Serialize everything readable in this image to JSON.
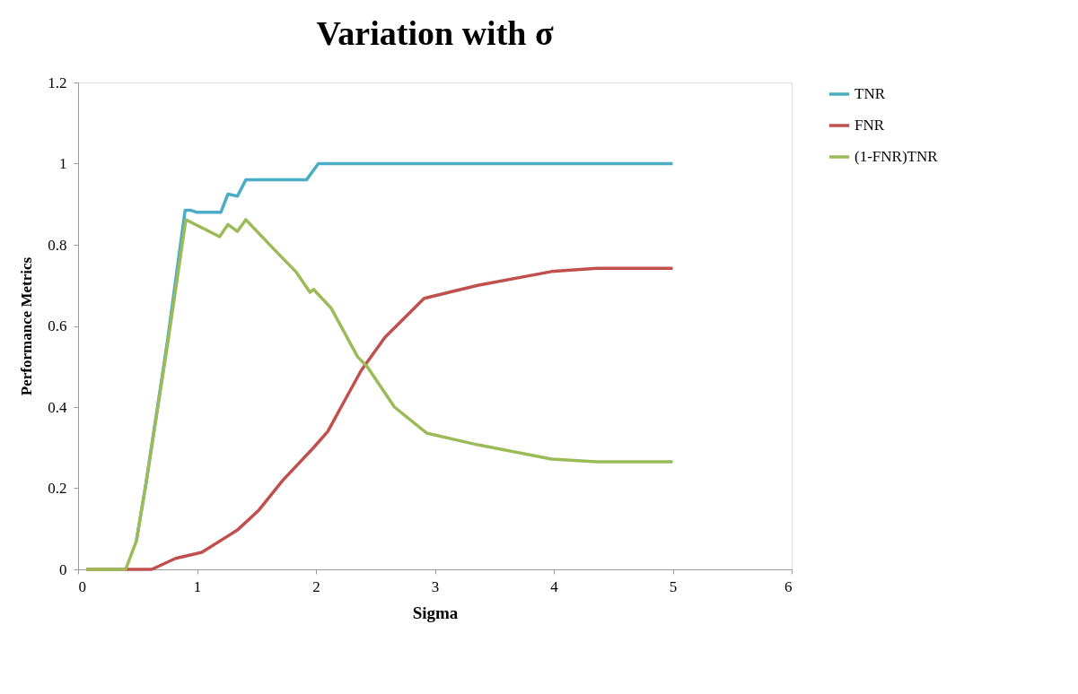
{
  "chart_data": {
    "type": "line",
    "title": "Variation with σ",
    "xlabel": "Sigma",
    "ylabel": "Performance Metrics",
    "xlim": [
      0,
      6
    ],
    "xticks": [
      0,
      1,
      2,
      3,
      4,
      5,
      6
    ],
    "ylim": [
      0,
      1.2
    ],
    "yticks": [
      0,
      0.2,
      0.4,
      0.6,
      0.8,
      1,
      1.2
    ],
    "grid": false,
    "legend": "right",
    "marker": "none",
    "line_style": "solid",
    "series": [
      {
        "name": "TNR",
        "color": "#4bacc6",
        "x": [
          0.49,
          0.57,
          0.75,
          0.9,
          0.95,
          1.0,
          1.2,
          1.26,
          1.34,
          1.41,
          1.5,
          1.92,
          2.02,
          2.1,
          3,
          4,
          5
        ],
        "values": [
          0.07,
          0.21,
          0.56,
          0.885,
          0.885,
          0.88,
          0.88,
          0.925,
          0.92,
          0.96,
          0.96,
          0.96,
          1.0,
          1.0,
          1.0,
          1.0,
          1.0
        ]
      },
      {
        "name": "FNR",
        "color": "#c0504d",
        "x": [
          0.07,
          0.62,
          0.82,
          1.04,
          1.34,
          1.52,
          1.72,
          1.98,
          2.1,
          2.23,
          2.38,
          2.58,
          2.91,
          3.36,
          3.98,
          4.36,
          5
        ],
        "values": [
          0,
          0,
          0.027,
          0.042,
          0.097,
          0.146,
          0.219,
          0.3,
          0.34,
          0.41,
          0.49,
          0.572,
          0.668,
          0.7,
          0.734,
          0.742,
          0.742
        ]
      },
      {
        "name": "(1-FNR)TNR",
        "color": "#9bbb59",
        "x": [
          0.07,
          0.35,
          0.4,
          0.49,
          0.57,
          0.75,
          0.906,
          1.19,
          1.26,
          1.34,
          1.41,
          1.67,
          1.83,
          1.95,
          1.98,
          2.13,
          2.35,
          2.43,
          2.66,
          2.93,
          3.36,
          3.98,
          4.36,
          5
        ],
        "values": [
          0,
          0,
          0,
          0.07,
          0.21,
          0.55,
          0.862,
          0.82,
          0.85,
          0.833,
          0.862,
          0.782,
          0.734,
          0.683,
          0.69,
          0.643,
          0.524,
          0.5,
          0.4,
          0.336,
          0.307,
          0.272,
          0.265,
          0.265
        ]
      }
    ]
  }
}
